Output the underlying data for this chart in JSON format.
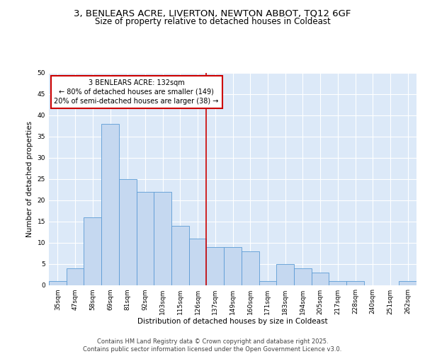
{
  "title_line1": "3, BENLEARS ACRE, LIVERTON, NEWTON ABBOT, TQ12 6GF",
  "title_line2": "Size of property relative to detached houses in Coldeast",
  "xlabel": "Distribution of detached houses by size in Coldeast",
  "ylabel": "Number of detached properties",
  "bar_color": "#c5d8f0",
  "bar_edge_color": "#5b9bd5",
  "plot_bg_color": "#dce9f8",
  "categories": [
    "35sqm",
    "47sqm",
    "58sqm",
    "69sqm",
    "81sqm",
    "92sqm",
    "103sqm",
    "115sqm",
    "126sqm",
    "137sqm",
    "149sqm",
    "160sqm",
    "171sqm",
    "183sqm",
    "194sqm",
    "205sqm",
    "217sqm",
    "228sqm",
    "240sqm",
    "251sqm",
    "262sqm"
  ],
  "values": [
    1,
    4,
    16,
    38,
    25,
    22,
    22,
    14,
    11,
    9,
    9,
    8,
    1,
    5,
    4,
    3,
    1,
    1,
    0,
    0,
    1
  ],
  "vline_x": 8.5,
  "vline_color": "#cc0000",
  "annotation_text": "3 BENLEARS ACRE: 132sqm\n← 80% of detached houses are smaller (149)\n20% of semi-detached houses are larger (38) →",
  "ylim": [
    0,
    50
  ],
  "yticks": [
    0,
    5,
    10,
    15,
    20,
    25,
    30,
    35,
    40,
    45,
    50
  ],
  "footer": "Contains HM Land Registry data © Crown copyright and database right 2025.\nContains public sector information licensed under the Open Government Licence v3.0.",
  "title_fontsize": 9.5,
  "subtitle_fontsize": 8.5,
  "axis_label_fontsize": 7.5,
  "tick_fontsize": 6.5,
  "annotation_fontsize": 7.0,
  "footer_fontsize": 6.0
}
